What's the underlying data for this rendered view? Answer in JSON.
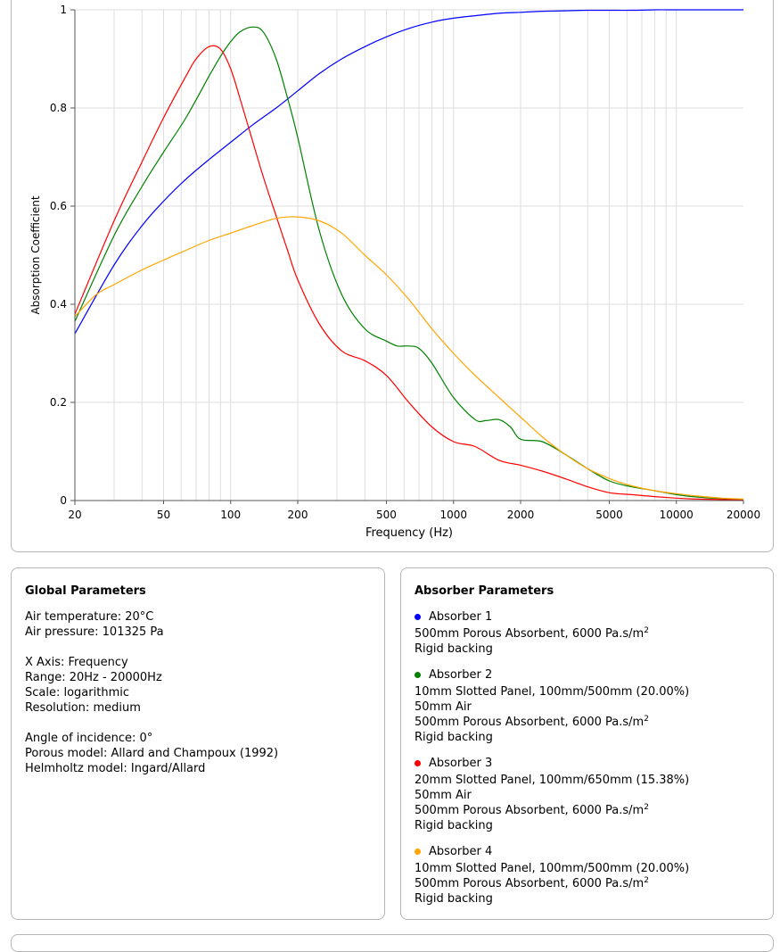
{
  "chart_data": {
    "type": "line",
    "xlabel": "Frequency (Hz)",
    "ylabel": "Absorption Coefficient",
    "xscale": "log",
    "xlim": [
      20,
      20000
    ],
    "ylim": [
      0,
      1
    ],
    "grid": true,
    "x_ticks": [
      20,
      50,
      100,
      200,
      500,
      1000,
      2000,
      5000,
      10000,
      20000
    ],
    "x_tick_labels": [
      "20",
      "50",
      "100",
      "200",
      "500",
      "1000",
      "2000",
      "5000",
      "10000",
      "20000"
    ],
    "y_ticks": [
      0,
      0.2,
      0.4,
      0.6,
      0.8,
      1
    ],
    "y_tick_labels": [
      "0",
      "0.2",
      "0.4",
      "0.6",
      "0.8",
      "1"
    ],
    "series": [
      {
        "color": "#0000ff",
        "x": [
          20,
          30,
          40,
          50,
          63,
          80,
          100,
          125,
          160,
          200,
          250,
          315,
          400,
          500,
          630,
          800,
          1000,
          1250,
          1600,
          2000,
          2500,
          3150,
          4000,
          5000,
          6300,
          8000,
          10000,
          12500,
          16000,
          20000
        ],
        "y": [
          0.34,
          0.48,
          0.56,
          0.61,
          0.655,
          0.695,
          0.73,
          0.765,
          0.8,
          0.835,
          0.87,
          0.9,
          0.925,
          0.945,
          0.962,
          0.975,
          0.983,
          0.988,
          0.993,
          0.995,
          0.997,
          0.998,
          0.999,
          0.999,
          0.999,
          1.0,
          1.0,
          1.0,
          1.0,
          1.0
        ]
      },
      {
        "color": "#008000",
        "x": [
          20,
          30,
          40,
          50,
          63,
          80,
          90,
          100,
          110,
          125,
          140,
          160,
          180,
          200,
          250,
          315,
          400,
          500,
          560,
          630,
          700,
          800,
          1000,
          1250,
          1400,
          1600,
          1800,
          2000,
          2500,
          3150,
          4000,
          5000,
          6300,
          8000,
          10000,
          12500,
          16000,
          20000
        ],
        "y": [
          0.365,
          0.54,
          0.64,
          0.71,
          0.78,
          0.865,
          0.905,
          0.935,
          0.955,
          0.965,
          0.955,
          0.9,
          0.82,
          0.74,
          0.55,
          0.42,
          0.35,
          0.325,
          0.315,
          0.315,
          0.31,
          0.28,
          0.21,
          0.165,
          0.163,
          0.165,
          0.15,
          0.125,
          0.12,
          0.095,
          0.065,
          0.04,
          0.028,
          0.02,
          0.012,
          0.007,
          0.004,
          0.002
        ]
      },
      {
        "color": "#ff0000",
        "x": [
          20,
          30,
          40,
          50,
          63,
          70,
          80,
          90,
          100,
          110,
          125,
          140,
          160,
          180,
          200,
          250,
          315,
          400,
          500,
          630,
          800,
          1000,
          1250,
          1600,
          2000,
          2500,
          3150,
          4000,
          5000,
          6300,
          8000,
          10000,
          12500,
          16000,
          20000
        ],
        "y": [
          0.38,
          0.57,
          0.69,
          0.78,
          0.865,
          0.9,
          0.925,
          0.92,
          0.88,
          0.82,
          0.735,
          0.66,
          0.58,
          0.51,
          0.45,
          0.36,
          0.305,
          0.285,
          0.255,
          0.2,
          0.15,
          0.12,
          0.11,
          0.082,
          0.072,
          0.06,
          0.045,
          0.028,
          0.016,
          0.012,
          0.008,
          0.005,
          0.003,
          0.002,
          0.001
        ]
      },
      {
        "color": "#ffa500",
        "x": [
          20,
          25,
          30,
          40,
          50,
          63,
          80,
          100,
          125,
          160,
          200,
          250,
          315,
          400,
          500,
          630,
          800,
          1000,
          1250,
          1600,
          2000,
          2500,
          3150,
          4000,
          5000,
          6300,
          8000,
          10000,
          12500,
          16000,
          20000
        ],
        "y": [
          0.375,
          0.42,
          0.44,
          0.47,
          0.49,
          0.51,
          0.53,
          0.545,
          0.56,
          0.575,
          0.578,
          0.57,
          0.545,
          0.5,
          0.46,
          0.41,
          0.35,
          0.3,
          0.255,
          0.21,
          0.17,
          0.13,
          0.095,
          0.065,
          0.045,
          0.03,
          0.02,
          0.014,
          0.009,
          0.005,
          0.003
        ]
      }
    ]
  },
  "global_params": {
    "title": "Global Parameters",
    "air_temperature": "Air temperature: 20°C",
    "air_pressure": "Air pressure: 101325 Pa",
    "x_axis": "X Axis: Frequency",
    "range": "Range: 20Hz - 20000Hz",
    "scale": "Scale: logarithmic",
    "resolution": "Resolution: medium",
    "angle": "Angle of incidence: 0°",
    "porous_model": "Porous model: Allard and Champoux (1992)",
    "helmholtz_model": "Helmholtz model: Ingard/Allard"
  },
  "absorber_params": {
    "title": "Absorber Parameters",
    "absorbers": [
      {
        "name": "Absorber 1",
        "color": "#0000ff",
        "lines": [
          "500mm Porous Absorbent, 6000 Pa.s/m",
          "Rigid backing"
        ]
      },
      {
        "name": "Absorber 2",
        "color": "#008000",
        "lines": [
          "10mm Slotted Panel, 100mm/500mm (20.00%)",
          "50mm Air",
          "500mm Porous Absorbent, 6000 Pa.s/m",
          "Rigid backing"
        ]
      },
      {
        "name": "Absorber 3",
        "color": "#ff0000",
        "lines": [
          "20mm Slotted Panel, 100mm/650mm (15.38%)",
          "50mm Air",
          "500mm Porous Absorbent, 6000 Pa.s/m",
          "Rigid backing"
        ]
      },
      {
        "name": "Absorber 4",
        "color": "#ffa500",
        "lines": [
          "10mm Slotted Panel, 100mm/500mm (20.00%)",
          "500mm Porous Absorbent, 6000 Pa.s/m",
          "Rigid backing"
        ]
      }
    ],
    "superscript": "2"
  }
}
